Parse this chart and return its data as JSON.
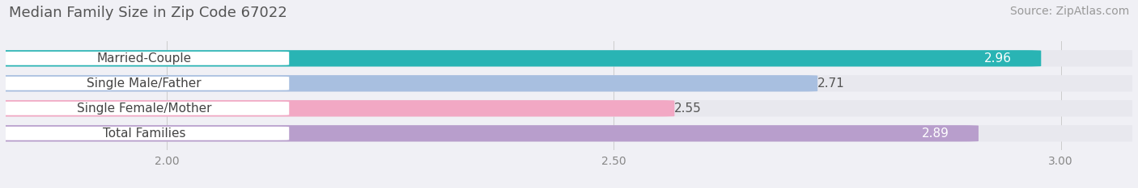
{
  "title": "Median Family Size in Zip Code 67022",
  "source": "Source: ZipAtlas.com",
  "categories": [
    "Married-Couple",
    "Single Male/Father",
    "Single Female/Mother",
    "Total Families"
  ],
  "values": [
    2.96,
    2.71,
    2.55,
    2.89
  ],
  "bar_colors": [
    "#29b4b4",
    "#a8bfe0",
    "#f2a8c4",
    "#b89ecc"
  ],
  "track_color": "#e8e8ee",
  "label_bg_color": "#ffffff",
  "xlim_min": 1.82,
  "xlim_max": 3.08,
  "xmin": 1.82,
  "xmax": 3.08,
  "xticks": [
    2.0,
    2.5,
    3.0
  ],
  "background_color": "#f0f0f5",
  "bar_height": 0.62,
  "title_fontsize": 13,
  "label_fontsize": 11,
  "value_fontsize": 11,
  "source_fontsize": 10
}
